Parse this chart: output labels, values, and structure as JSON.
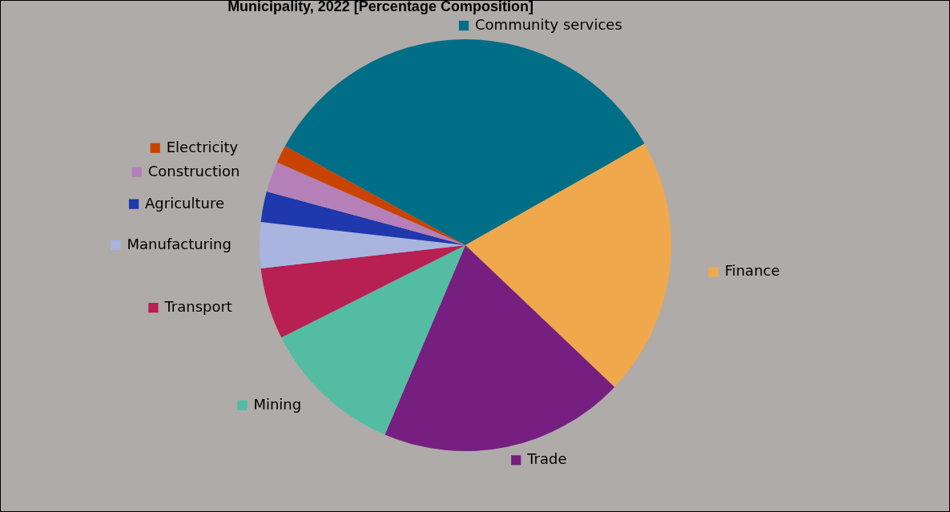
{
  "chart_data": {
    "type": "pie",
    "title": "Municipality, 2022 [Percentage Composition]",
    "categories": [
      "Community services",
      "Finance",
      "Trade",
      "Mining",
      "Transport",
      "Manufacturing",
      "Agriculture",
      "Construction",
      "Electricity"
    ],
    "values": [
      33.8,
      20.3,
      19.3,
      11.2,
      5.6,
      3.6,
      2.4,
      2.4,
      1.4
    ],
    "colors": [
      "#006e87",
      "#f0a84c",
      "#761f80",
      "#54bca3",
      "#b81f52",
      "#a9b4df",
      "#1f38ad",
      "#b580b7",
      "#c84300"
    ],
    "legend": "left"
  }
}
